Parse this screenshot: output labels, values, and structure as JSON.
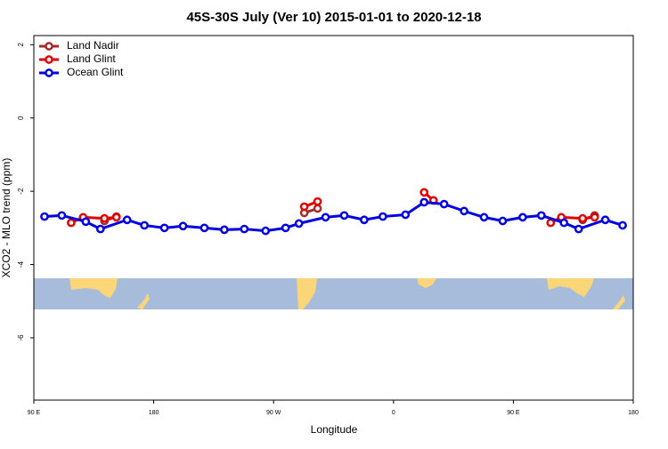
{
  "chart_data": {
    "type": "line",
    "title": "45S-30S July (Ver 10)   2015-01-01 to 2020-12-18",
    "x_label": "Longitude",
    "y_label": "XCO2 - MLO trend (ppm)",
    "xlim": [
      90,
      540
    ],
    "xticks": [
      {
        "value": 90,
        "label": "90 E"
      },
      180,
      {
        "value": 270,
        "label": "90 W"
      },
      {
        "value": 360,
        "label": "0"
      },
      {
        "value": 450,
        "label": "90 E"
      },
      {
        "value": 540,
        "label": "180"
      }
    ],
    "ylim": [
      -7.7,
      2.25
    ],
    "yticks": [
      2,
      0,
      -2,
      -4,
      -6
    ],
    "legend": "top-left",
    "series": [
      {
        "name": "Land Nadir",
        "color": "#a52a2a",
        "x": [
          143,
          152,
          null,
          293,
          303,
          null,
          390,
          null,
          502,
          511
        ],
        "values": [
          -2.81,
          -2.69,
          null,
          -2.59,
          -2.47,
          null,
          -2.25,
          null,
          -2.78,
          -2.66
        ]
      },
      {
        "name": "Land Glint",
        "color": "#e00000",
        "x": [
          118,
          127,
          143,
          152,
          null,
          293,
          303,
          null,
          383,
          390,
          null,
          478,
          486,
          502,
          511
        ],
        "values": [
          -2.86,
          -2.71,
          -2.74,
          -2.71,
          null,
          -2.42,
          -2.28,
          null,
          -2.03,
          -2.25,
          null,
          -2.86,
          -2.71,
          -2.74,
          -2.71
        ]
      },
      {
        "name": "Ocean Glint",
        "color": "#0000e0",
        "x": [
          98,
          111,
          129,
          140,
          160,
          173,
          188,
          202,
          218,
          233,
          248,
          264,
          279,
          289,
          309,
          323,
          338,
          352,
          369,
          383,
          398,
          413,
          428,
          442,
          457,
          471,
          488,
          499,
          519,
          532
        ],
        "values": [
          -2.69,
          -2.66,
          -2.83,
          -3.03,
          -2.78,
          -2.93,
          -3.0,
          -2.95,
          -3.0,
          -3.05,
          -3.03,
          -3.08,
          -3.0,
          -2.88,
          -2.71,
          -2.66,
          -2.78,
          -2.69,
          -2.64,
          -2.3,
          -2.35,
          -2.54,
          -2.71,
          -2.81,
          -2.71,
          -2.66,
          -2.86,
          -3.03,
          -2.78,
          -2.93
        ]
      }
    ]
  }
}
